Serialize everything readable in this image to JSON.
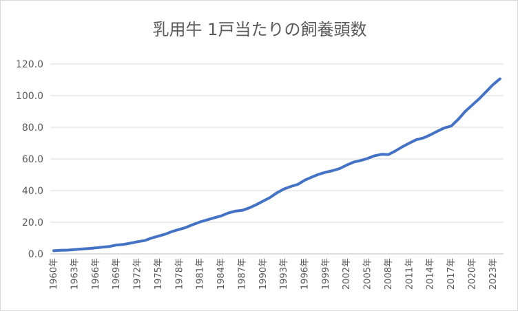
{
  "chart_data": {
    "type": "line",
    "title": "乳用牛 1戸当たりの飼養頭数",
    "xlabel": "",
    "ylabel": "",
    "ylim": [
      0,
      120
    ],
    "yticks": [
      "0.0",
      "20.0",
      "40.0",
      "60.0",
      "80.0",
      "100.0",
      "120.0"
    ],
    "xtick_labels": [
      "1960年",
      "1963年",
      "1966年",
      "1969年",
      "1972年",
      "1975年",
      "1978年",
      "1981年",
      "1984年",
      "1987年",
      "1990年",
      "1993年",
      "1996年",
      "1999年",
      "2002年",
      "2005年",
      "2008年",
      "2011年",
      "2014年",
      "2017年",
      "2020年",
      "2023年"
    ],
    "grid": true,
    "legend": "none",
    "color": "#4472c4",
    "x": [
      1960,
      1961,
      1962,
      1963,
      1964,
      1965,
      1966,
      1967,
      1968,
      1969,
      1970,
      1971,
      1972,
      1973,
      1974,
      1975,
      1976,
      1977,
      1978,
      1979,
      1980,
      1981,
      1982,
      1983,
      1984,
      1985,
      1986,
      1987,
      1988,
      1989,
      1990,
      1991,
      1992,
      1993,
      1994,
      1995,
      1996,
      1997,
      1998,
      1999,
      2000,
      2001,
      2002,
      2003,
      2004,
      2005,
      2006,
      2007,
      2008,
      2009,
      2010,
      2011,
      2012,
      2013,
      2014,
      2015,
      2016,
      2017,
      2018,
      2019,
      2020,
      2021,
      2022,
      2023,
      2024
    ],
    "values": [
      2.0,
      2.3,
      2.4,
      2.7,
      3.1,
      3.4,
      3.8,
      4.3,
      4.7,
      5.6,
      6.0,
      6.8,
      7.7,
      8.4,
      10.0,
      11.2,
      12.5,
      14.2,
      15.5,
      16.8,
      18.6,
      20.2,
      21.5,
      22.8,
      24.0,
      25.8,
      27.0,
      27.5,
      29.0,
      31.0,
      33.3,
      35.6,
      38.6,
      41.0,
      42.6,
      43.9,
      46.6,
      48.5,
      50.3,
      51.6,
      52.6,
      53.9,
      56.1,
      58.0,
      59.0,
      60.3,
      62.0,
      62.9,
      62.8,
      65.1,
      67.7,
      70.0,
      72.2,
      73.2,
      75.2,
      77.5,
      79.6,
      80.8,
      85.0,
      90.0,
      94.0,
      98.0,
      102.5,
      107.0,
      110.6
    ]
  }
}
